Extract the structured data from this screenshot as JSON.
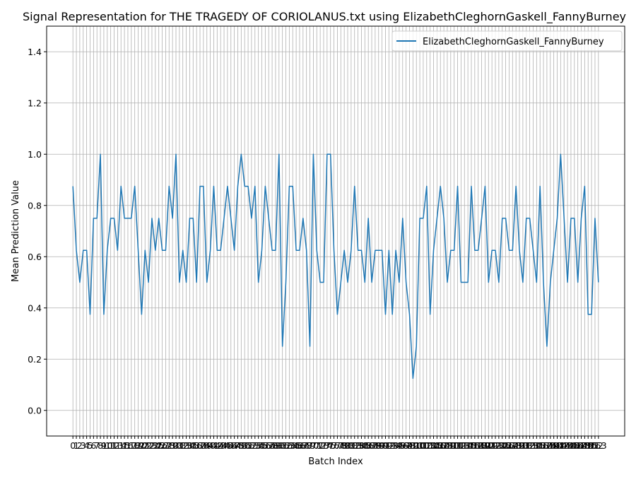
{
  "chart_data": {
    "type": "line",
    "title": "Signal Representation for THE TRAGEDY OF CORIOLANUS.txt using ElizabethCleghornGaskell_FannyBurney",
    "xlabel": "Batch Index",
    "ylabel": "Mean Prediction Value",
    "x": [
      0,
      1,
      2,
      3,
      4,
      5,
      6,
      7,
      8,
      9,
      10,
      11,
      12,
      13,
      14,
      15,
      16,
      17,
      18,
      19,
      20,
      21,
      22,
      23,
      24,
      25,
      26,
      27,
      28,
      29,
      30,
      31,
      32,
      33,
      34,
      35,
      36,
      37,
      38,
      39,
      40,
      41,
      42,
      43,
      44,
      45,
      46,
      47,
      48,
      49,
      50,
      51,
      52,
      53,
      54,
      55,
      56,
      57,
      58,
      59,
      60,
      61,
      62,
      63,
      64,
      65,
      66,
      67,
      68,
      69,
      70,
      71,
      72,
      73,
      74,
      75,
      76,
      77,
      78,
      79,
      80,
      81,
      82,
      83,
      84,
      85,
      86,
      87,
      88,
      89,
      90,
      91,
      92,
      93,
      94,
      95,
      96,
      97,
      98,
      99,
      100,
      101,
      102,
      103,
      104,
      105,
      106,
      107,
      108,
      109,
      110,
      111,
      112,
      113,
      114,
      115,
      116,
      117,
      118,
      119,
      120,
      121,
      122,
      123,
      124,
      125,
      126,
      127,
      128,
      129,
      130,
      131,
      132,
      133,
      134,
      135,
      136,
      137,
      138,
      139,
      140,
      141,
      142,
      143,
      144,
      145,
      146,
      147,
      148,
      149,
      150,
      151,
      152,
      153
    ],
    "series": [
      {
        "name": "ElizabethCleghornGaskell_FannyBurney",
        "color": "#1f77b4",
        "values": [
          0.875,
          0.625,
          0.5,
          0.625,
          0.625,
          0.375,
          0.75,
          0.75,
          1.0,
          0.375,
          0.625,
          0.75,
          0.75,
          0.625,
          0.875,
          0.75,
          0.75,
          0.75,
          0.875,
          0.625,
          0.375,
          0.625,
          0.5,
          0.75,
          0.625,
          0.75,
          0.625,
          0.625,
          0.875,
          0.75,
          1.0,
          0.5,
          0.625,
          0.5,
          0.75,
          0.75,
          0.5,
          0.875,
          0.875,
          0.5,
          0.625,
          0.875,
          0.625,
          0.625,
          0.75,
          0.875,
          0.75,
          0.625,
          0.875,
          1.0,
          0.875,
          0.875,
          0.75,
          0.875,
          0.5,
          0.625,
          0.875,
          0.75,
          0.625,
          0.625,
          1.0,
          0.25,
          0.5,
          0.875,
          0.875,
          0.625,
          0.625,
          0.75,
          0.625,
          0.25,
          1.0,
          0.625,
          0.5,
          0.5,
          1.0,
          1.0,
          0.625,
          0.375,
          0.5,
          0.625,
          0.5,
          0.625,
          0.875,
          0.625,
          0.625,
          0.5,
          0.75,
          0.5,
          0.625,
          0.625,
          0.625,
          0.375,
          0.625,
          0.375,
          0.625,
          0.5,
          0.75,
          0.5,
          0.375,
          0.125,
          0.25,
          0.75,
          0.75,
          0.875,
          0.375,
          0.625,
          0.75,
          0.875,
          0.75,
          0.5,
          0.625,
          0.625,
          0.875,
          0.5,
          0.5,
          0.5,
          0.875,
          0.625,
          0.625,
          0.75,
          0.875,
          0.5,
          0.625,
          0.625,
          0.5,
          0.75,
          0.75,
          0.625,
          0.625,
          0.875,
          0.625,
          0.5,
          0.75,
          0.75,
          0.625,
          0.5,
          0.875,
          0.5,
          0.25,
          0.5,
          0.625,
          0.75,
          1.0,
          0.75,
          0.5,
          0.75,
          0.75,
          0.5,
          0.75,
          0.875,
          0.375,
          0.375,
          0.75,
          0.5
        ]
      }
    ],
    "xlim": [
      -7.65,
      160.65
    ],
    "xticks": [
      0,
      1,
      2,
      3,
      4,
      5,
      6,
      7,
      8,
      9,
      10,
      11,
      12,
      13,
      14,
      15,
      16,
      17,
      18,
      19,
      20,
      21,
      22,
      23,
      24,
      25,
      26,
      27,
      28,
      29,
      30,
      31,
      32,
      33,
      34,
      35,
      36,
      37,
      38,
      39,
      40,
      41,
      42,
      43,
      44,
      45,
      46,
      47,
      48,
      49,
      50,
      51,
      52,
      53,
      54,
      55,
      56,
      57,
      58,
      59,
      60,
      61,
      62,
      63,
      64,
      65,
      66,
      67,
      68,
      69,
      70,
      71,
      72,
      73,
      74,
      75,
      76,
      77,
      78,
      79,
      80,
      81,
      82,
      83,
      84,
      85,
      86,
      87,
      88,
      89,
      90,
      91,
      92,
      93,
      94,
      95,
      96,
      97,
      98,
      99,
      100,
      101,
      102,
      103,
      104,
      105,
      106,
      107,
      108,
      109,
      110,
      111,
      112,
      113,
      114,
      115,
      116,
      117,
      118,
      119,
      120,
      121,
      122,
      123,
      124,
      125,
      126,
      127,
      128,
      129,
      130,
      131,
      132,
      133,
      134,
      135,
      136,
      137,
      138,
      139,
      140,
      141,
      142,
      143,
      144,
      145,
      146,
      147,
      148,
      149,
      150,
      151,
      152,
      153
    ],
    "ylim": [
      -0.1,
      1.5
    ],
    "yticks": [
      {
        "value": 0,
        "label": "0.0"
      },
      0.2,
      0.4,
      0.6,
      0.8,
      {
        "value": 1,
        "label": "1.0"
      },
      1.2,
      1.4
    ],
    "grid": true,
    "legend": "upper right"
  }
}
